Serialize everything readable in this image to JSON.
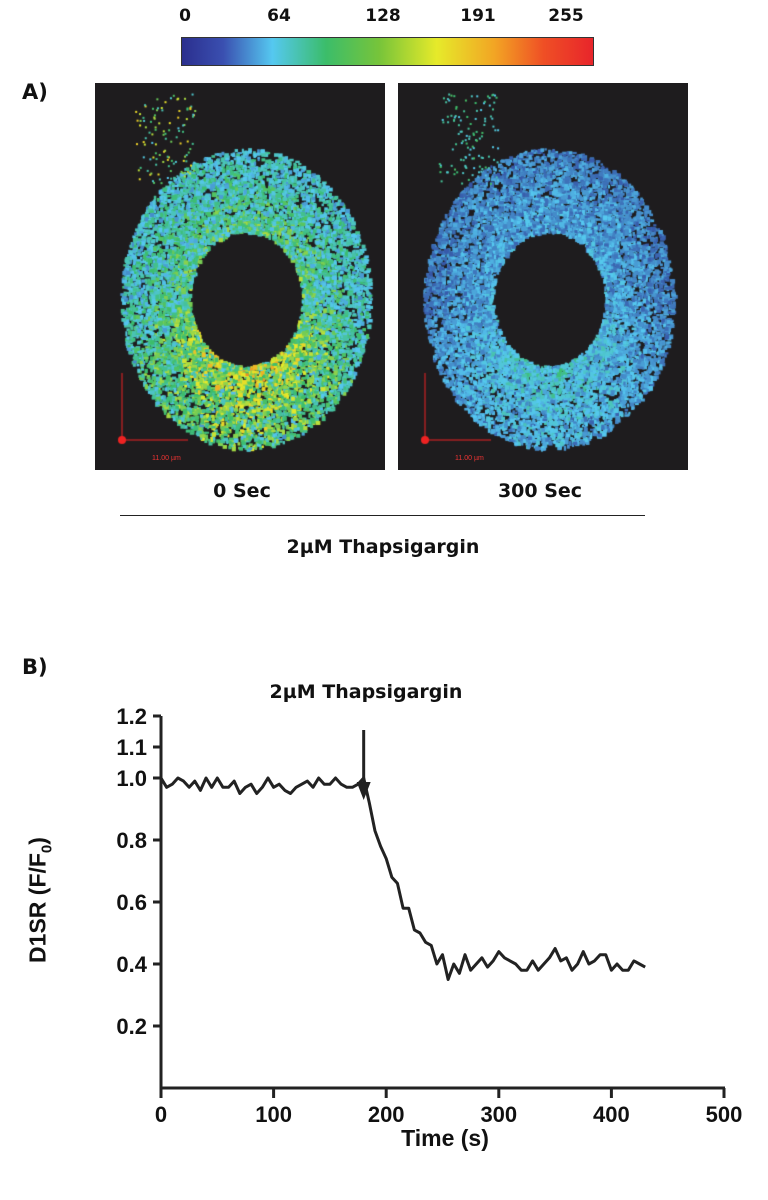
{
  "panel_a": {
    "label": "A)",
    "colorbar": {
      "ticks": [
        "0",
        "64",
        "128",
        "191",
        "255"
      ],
      "colors": [
        "#2b2f8e",
        "#55c8f0",
        "#3bbd6a",
        "#e6ea2a",
        "#f2a524",
        "#e8252b"
      ]
    },
    "images": [
      {
        "caption": "0 Sec",
        "scale_label": "11.00 µm"
      },
      {
        "caption": "300 Sec",
        "scale_label": "11.00 µm"
      }
    ],
    "treatment": "2µM Thapsigargin"
  },
  "panel_b": {
    "label": "B)"
  },
  "chart_data": {
    "type": "line",
    "title": "2µM Thapsigargin",
    "xlabel": "Time (s)",
    "ylabel": "D1SR (F/F0)",
    "ylabel_main": "D1SR (F/F",
    "ylabel_sub": "0",
    "ylabel_end": ")",
    "xlim": [
      0,
      500
    ],
    "ylim": [
      0,
      1.2
    ],
    "xticks": [
      "0",
      "100",
      "200",
      "300",
      "400",
      "500"
    ],
    "yticks": [
      "0.2",
      "0.4",
      "0.6",
      "0.8",
      "1.0",
      "1.1",
      "1.2"
    ],
    "yticks_values": [
      0.2,
      0.4,
      0.6,
      0.8,
      1.0,
      1.1,
      1.2
    ],
    "annotation": {
      "text": "arrow",
      "x": 180
    },
    "series": [
      {
        "name": "D1SR",
        "x": [
          0,
          5,
          10,
          15,
          20,
          25,
          30,
          35,
          40,
          45,
          50,
          55,
          60,
          65,
          70,
          75,
          80,
          85,
          90,
          95,
          100,
          105,
          110,
          115,
          120,
          125,
          130,
          135,
          140,
          145,
          150,
          155,
          160,
          165,
          170,
          175,
          180,
          185,
          190,
          195,
          200,
          205,
          210,
          215,
          220,
          225,
          230,
          235,
          240,
          245,
          250,
          255,
          260,
          265,
          270,
          275,
          280,
          285,
          290,
          295,
          300,
          305,
          310,
          315,
          320,
          325,
          330,
          335,
          340,
          345,
          350,
          355,
          360,
          365,
          370,
          375,
          380,
          385,
          390,
          395,
          400,
          405,
          410,
          415,
          420,
          425,
          430
        ],
        "values": [
          1.0,
          0.97,
          0.98,
          1.0,
          0.99,
          0.97,
          0.99,
          0.96,
          1.0,
          0.97,
          1.0,
          0.97,
          0.97,
          0.99,
          0.95,
          0.97,
          0.98,
          0.95,
          0.97,
          1.0,
          0.97,
          0.98,
          0.96,
          0.95,
          0.97,
          0.98,
          0.99,
          0.97,
          1.0,
          0.98,
          0.98,
          1.0,
          0.98,
          0.97,
          0.97,
          0.98,
          1.0,
          0.92,
          0.83,
          0.78,
          0.74,
          0.68,
          0.66,
          0.58,
          0.58,
          0.51,
          0.5,
          0.47,
          0.46,
          0.4,
          0.43,
          0.35,
          0.4,
          0.37,
          0.43,
          0.38,
          0.4,
          0.42,
          0.39,
          0.41,
          0.44,
          0.42,
          0.41,
          0.4,
          0.38,
          0.38,
          0.41,
          0.38,
          0.4,
          0.42,
          0.45,
          0.41,
          0.42,
          0.38,
          0.4,
          0.44,
          0.4,
          0.41,
          0.43,
          0.43,
          0.38,
          0.4,
          0.38,
          0.38,
          0.41,
          0.4,
          0.39
        ]
      }
    ]
  }
}
